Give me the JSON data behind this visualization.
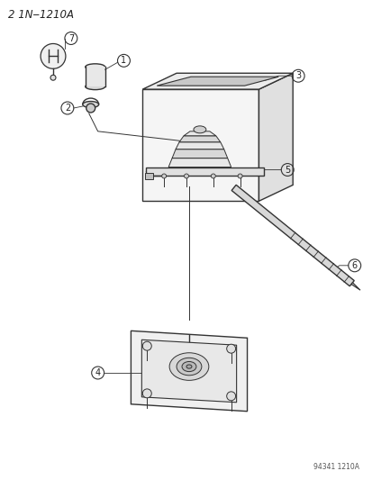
{
  "title": "2 1N‒1210A",
  "footnote": "94341 1210A",
  "bg_color": "#ffffff",
  "line_color": "#333333",
  "label_color": "#222222",
  "figsize": [
    4.14,
    5.33
  ],
  "dpi": 100
}
